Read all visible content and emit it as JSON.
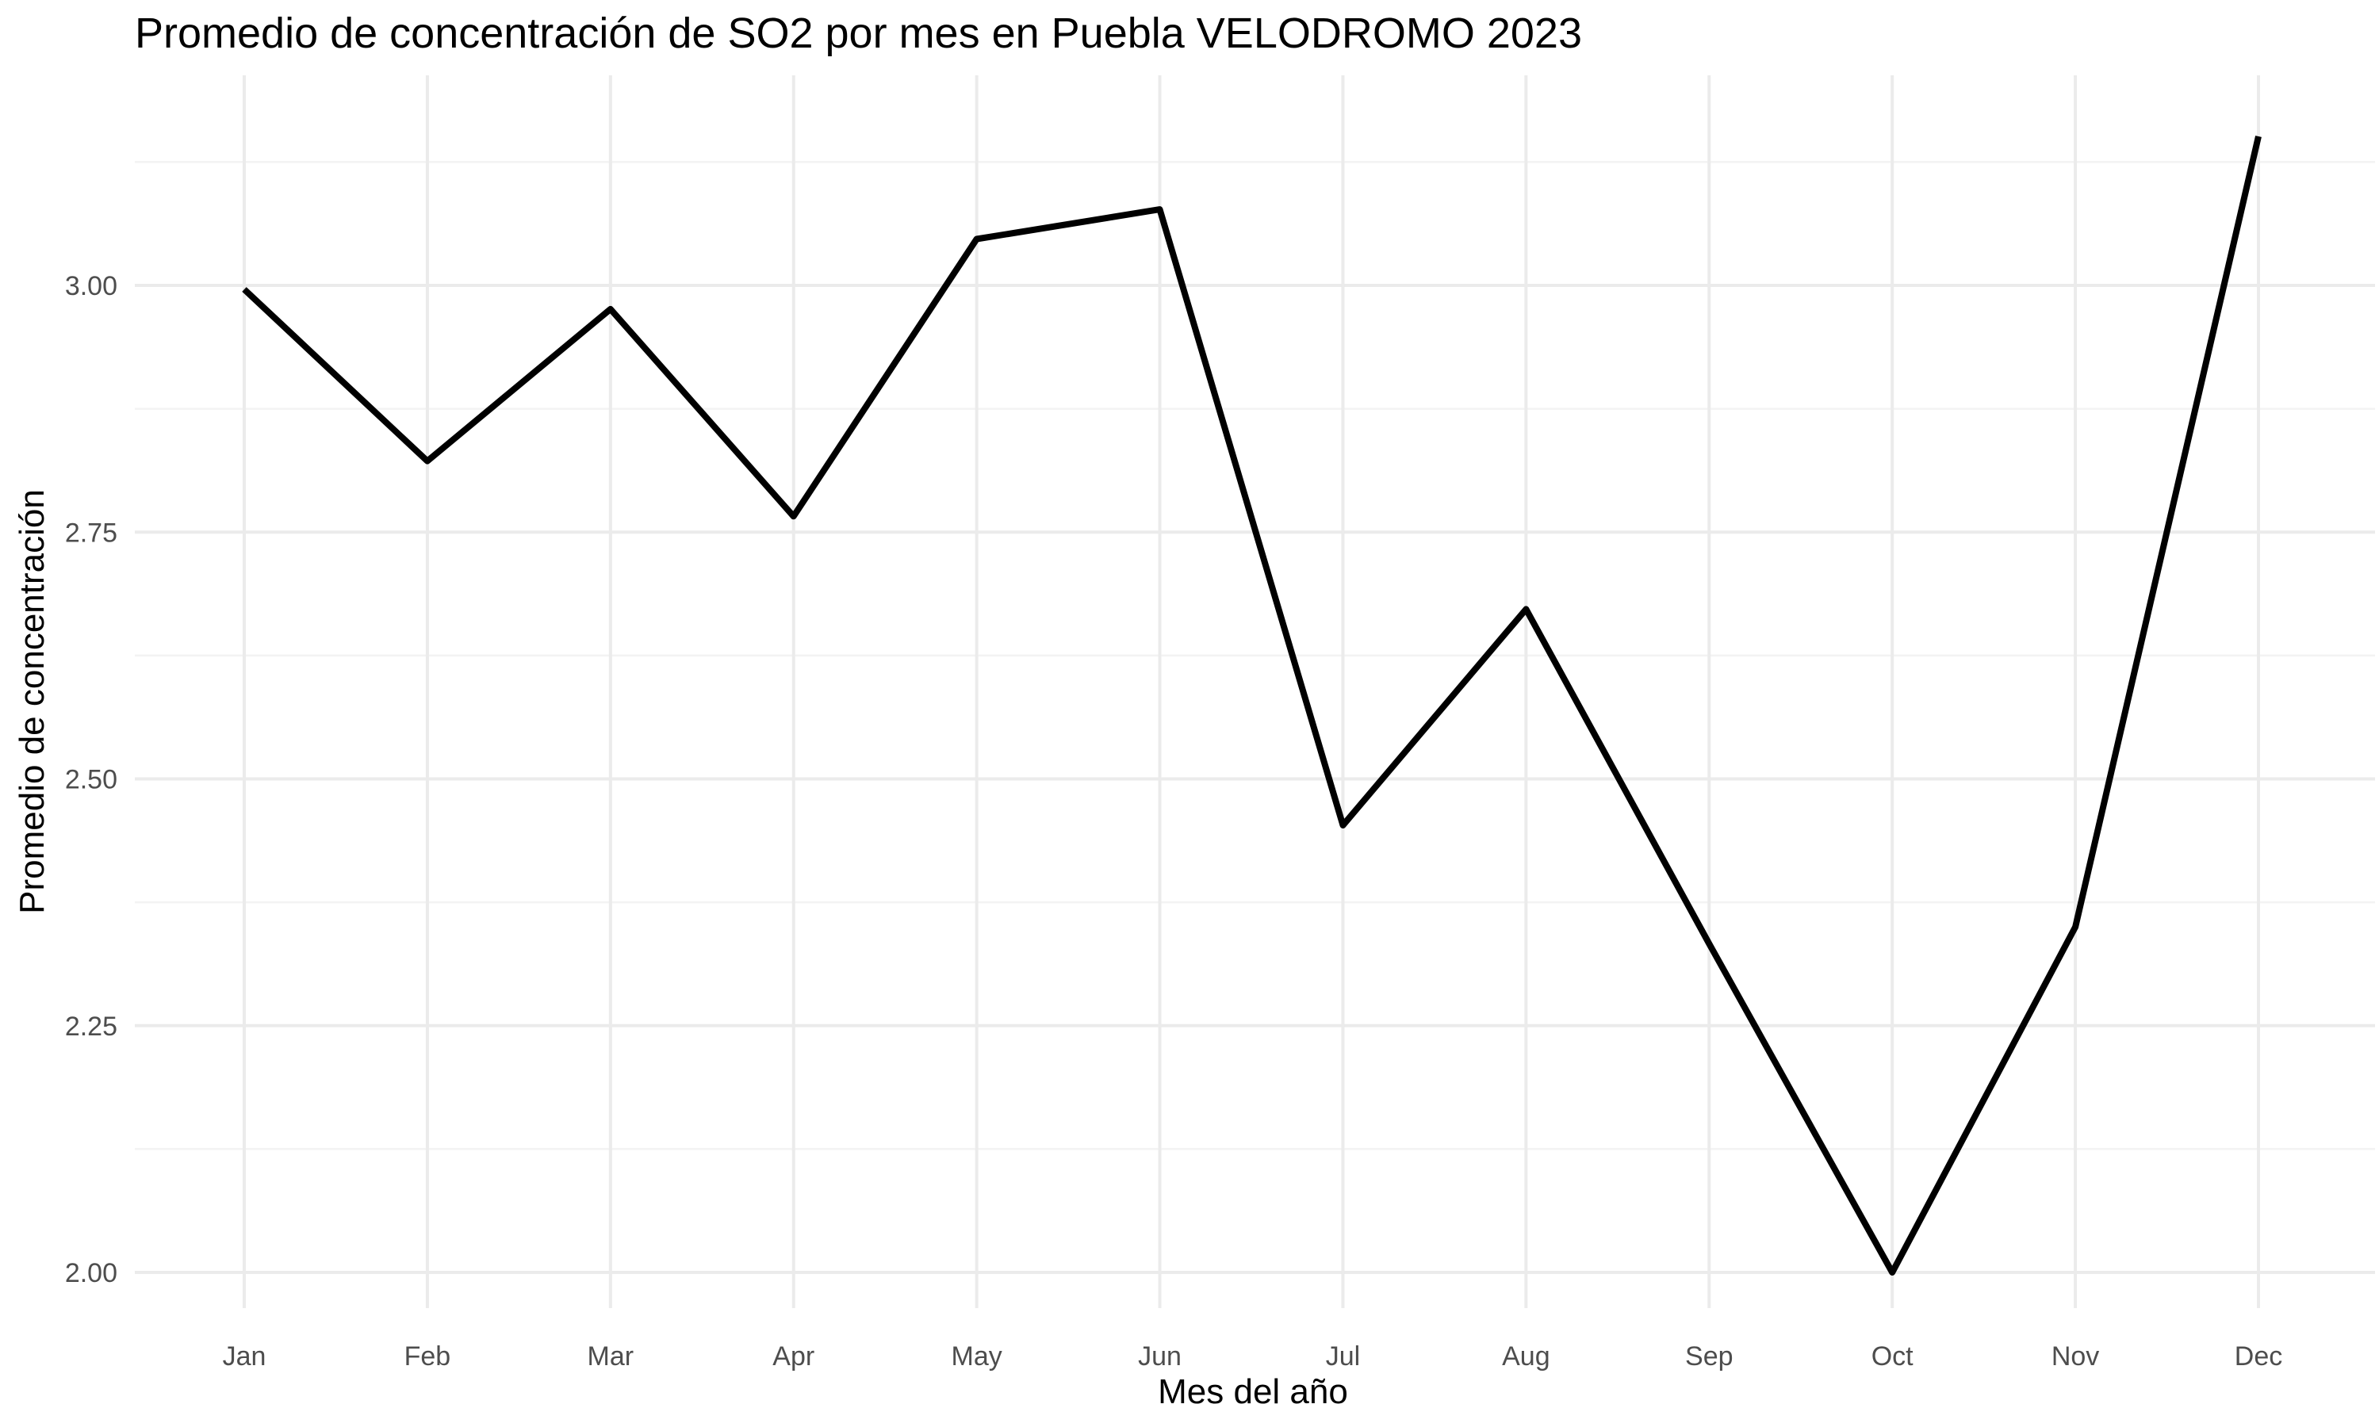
{
  "chart_data": {
    "type": "line",
    "title": "Promedio de concentración de SO2 por mes en Puebla VELODROMO 2023",
    "xlabel": "Mes del año",
    "ylabel": "Promedio de concentración",
    "categories": [
      "Jan",
      "Feb",
      "Mar",
      "Apr",
      "May",
      "Jun",
      "Jul",
      "Aug",
      "Sep",
      "Oct",
      "Nov",
      "Dec"
    ],
    "series": [
      {
        "values": [
          2.996,
          2.822,
          2.976,
          2.766,
          3.047,
          3.077,
          2.453,
          2.672,
          2.333,
          2.0,
          2.35,
          3.151
        ]
      }
    ],
    "ylim": [
      2.0,
      3.151
    ],
    "yticks": [
      "2.00",
      "2.25",
      "2.50",
      "2.75",
      "3.00"
    ],
    "grid": true,
    "legend": "none",
    "colors": {
      "line": "#000000",
      "grid_major": "#ebebeb",
      "grid_minor": "#f3f3f3",
      "tick_text": "#4d4d4d"
    }
  }
}
